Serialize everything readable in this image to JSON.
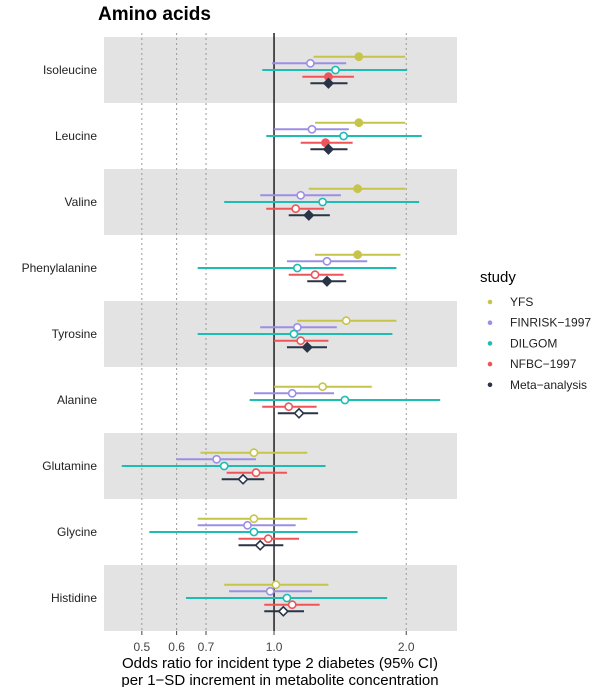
{
  "chart_data": {
    "type": "forest",
    "title": "Amino acids",
    "xlabel_lines": [
      "Odds ratio for incident type 2 diabetes (95% CI)",
      "per 1−SD increment in metabolite concentration"
    ],
    "x_scale": "log",
    "xlim": [
      0.41,
      2.61
    ],
    "x_ticks": [
      0.5,
      0.6,
      0.7,
      1.0,
      2.0
    ],
    "x_tick_labels": [
      "0.5",
      "0.6",
      "0.7",
      "1.0",
      "2.0"
    ],
    "reference_line": 1.0,
    "grid": "dotted vertical at ticks",
    "legend": {
      "title": "study",
      "placement": "right"
    },
    "studies": [
      {
        "name": "YFS",
        "color": "#c6c44a"
      },
      {
        "name": "FINRISK−1997",
        "color": "#9b8ee6"
      },
      {
        "name": "DILGOM",
        "color": "#1fbcb4"
      },
      {
        "name": "NFBC−1997",
        "color": "#ee5458"
      },
      {
        "name": "Meta−analysis",
        "color": "#2a3447"
      }
    ],
    "metabolites": [
      {
        "name": "Isoleucine",
        "estimates": [
          [
            1.56,
            1.23,
            1.99,
            true
          ],
          [
            1.21,
            0.99,
            1.46,
            false
          ],
          [
            1.38,
            0.94,
            2.01,
            false
          ],
          [
            1.33,
            1.16,
            1.52,
            true
          ],
          [
            1.33,
            1.21,
            1.47,
            true
          ]
        ]
      },
      {
        "name": "Leucine",
        "estimates": [
          [
            1.56,
            1.24,
            1.99,
            true
          ],
          [
            1.22,
            1.0,
            1.48,
            false
          ],
          [
            1.44,
            0.96,
            2.17,
            false
          ],
          [
            1.31,
            1.15,
            1.51,
            true
          ],
          [
            1.33,
            1.21,
            1.47,
            true
          ]
        ]
      },
      {
        "name": "Valine",
        "estimates": [
          [
            1.55,
            1.2,
            1.99,
            true
          ],
          [
            1.15,
            0.93,
            1.42,
            false
          ],
          [
            1.29,
            0.77,
            2.14,
            false
          ],
          [
            1.12,
            0.96,
            1.3,
            false
          ],
          [
            1.2,
            1.08,
            1.34,
            true
          ]
        ]
      },
      {
        "name": "Phenylalanine",
        "estimates": [
          [
            1.55,
            1.24,
            1.94,
            true
          ],
          [
            1.32,
            1.07,
            1.63,
            false
          ],
          [
            1.13,
            0.67,
            1.9,
            false
          ],
          [
            1.24,
            1.08,
            1.44,
            false
          ],
          [
            1.32,
            1.19,
            1.46,
            true
          ]
        ]
      },
      {
        "name": "Tyrosine",
        "estimates": [
          [
            1.46,
            1.13,
            1.9,
            false
          ],
          [
            1.13,
            0.93,
            1.39,
            false
          ],
          [
            1.11,
            0.67,
            1.86,
            false
          ],
          [
            1.15,
            1.0,
            1.33,
            false
          ],
          [
            1.19,
            1.07,
            1.32,
            true
          ]
        ]
      },
      {
        "name": "Alanine",
        "estimates": [
          [
            1.29,
            1.0,
            1.67,
            false
          ],
          [
            1.1,
            0.9,
            1.37,
            false
          ],
          [
            1.45,
            0.88,
            2.39,
            false
          ],
          [
            1.08,
            0.94,
            1.25,
            false
          ],
          [
            1.14,
            1.02,
            1.26,
            false
          ]
        ]
      },
      {
        "name": "Glutamine",
        "estimates": [
          [
            0.9,
            0.68,
            1.19,
            false
          ],
          [
            0.74,
            0.6,
            0.91,
            false
          ],
          [
            0.77,
            0.45,
            1.31,
            false
          ],
          [
            0.91,
            0.78,
            1.07,
            false
          ],
          [
            0.85,
            0.76,
            0.95,
            false
          ]
        ]
      },
      {
        "name": "Glycine",
        "estimates": [
          [
            0.9,
            0.67,
            1.19,
            false
          ],
          [
            0.87,
            0.67,
            1.12,
            false
          ],
          [
            0.9,
            0.52,
            1.55,
            false
          ],
          [
            0.97,
            0.83,
            1.14,
            false
          ],
          [
            0.93,
            0.83,
            1.05,
            false
          ]
        ]
      },
      {
        "name": "Histidine",
        "estimates": [
          [
            1.01,
            0.77,
            1.33,
            false
          ],
          [
            0.98,
            0.79,
            1.22,
            false
          ],
          [
            1.07,
            0.63,
            1.81,
            false
          ],
          [
            1.1,
            0.95,
            1.27,
            false
          ],
          [
            1.05,
            0.95,
            1.17,
            false
          ]
        ]
      }
    ],
    "estimate_fields": [
      "odds_ratio",
      "ci_lower",
      "ci_upper",
      "filled_marker"
    ]
  }
}
